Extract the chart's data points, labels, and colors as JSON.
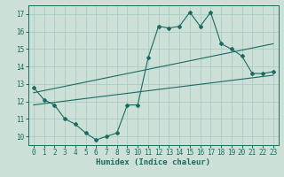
{
  "title": "",
  "xlabel": "Humidex (Indice chaleur)",
  "ylabel": "",
  "bg_color": "#cce0d8",
  "grid_color": "#aaccc4",
  "line_color": "#1a6b60",
  "xlim": [
    -0.5,
    23.5
  ],
  "ylim": [
    9.5,
    17.5
  ],
  "yticks": [
    10,
    11,
    12,
    13,
    14,
    15,
    16,
    17
  ],
  "xticks": [
    0,
    1,
    2,
    3,
    4,
    5,
    6,
    7,
    8,
    9,
    10,
    11,
    12,
    13,
    14,
    15,
    16,
    17,
    18,
    19,
    20,
    21,
    22,
    23
  ],
  "line1_x": [
    0,
    1,
    2,
    3,
    4,
    5,
    6,
    7,
    8,
    9,
    10,
    11,
    12,
    13,
    14,
    15,
    16,
    17,
    18,
    19,
    20,
    21,
    22,
    23
  ],
  "line1_y": [
    12.8,
    12.1,
    11.8,
    11.0,
    10.7,
    10.2,
    9.8,
    10.0,
    10.2,
    11.8,
    11.8,
    14.5,
    16.3,
    16.2,
    16.3,
    17.1,
    16.3,
    17.1,
    15.3,
    15.0,
    14.6,
    13.6,
    13.6,
    13.7
  ],
  "line2_x": [
    0,
    23
  ],
  "line2_y": [
    12.5,
    15.3
  ],
  "line3_x": [
    0,
    23
  ],
  "line3_y": [
    11.8,
    13.5
  ]
}
